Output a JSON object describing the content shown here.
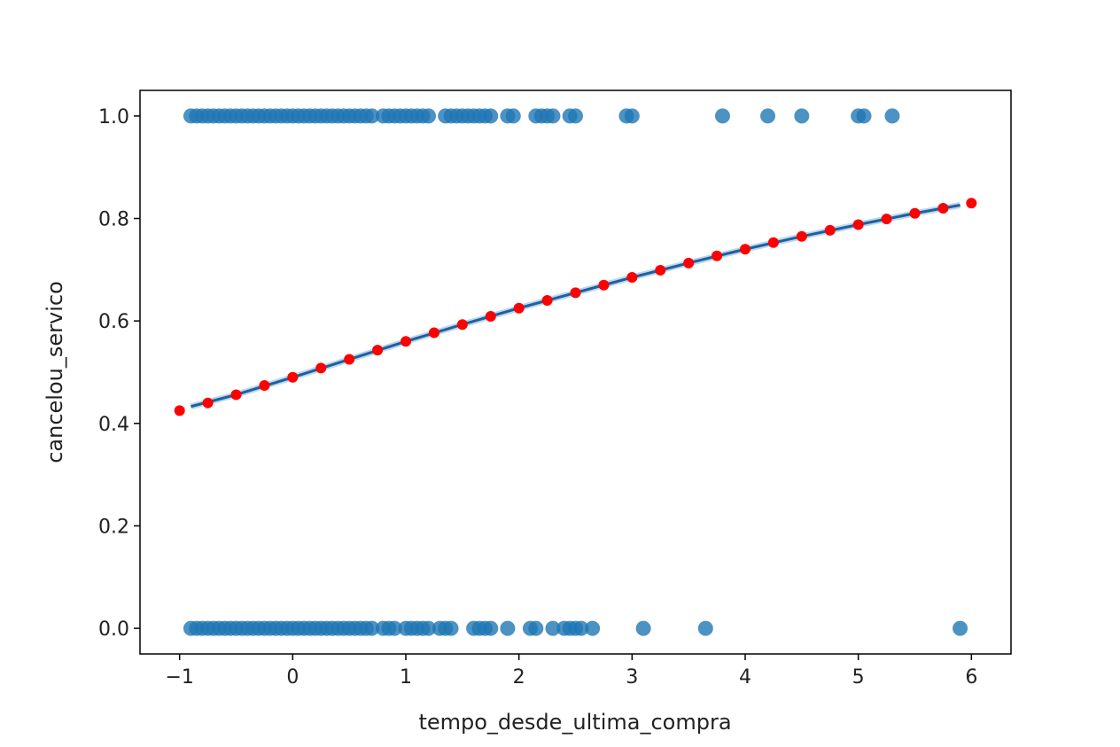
{
  "chart_data": {
    "type": "scatter",
    "title": "",
    "xlabel": "tempo_desde_ultima_compra",
    "ylabel": "cancelou_servico",
    "xlim": [
      -1.35,
      6.35
    ],
    "ylim": [
      -0.05,
      1.05
    ],
    "xticks": [
      -1,
      0,
      1,
      2,
      3,
      4,
      5,
      6
    ],
    "xtick_labels": [
      "−1",
      "0",
      "1",
      "2",
      "3",
      "4",
      "5",
      "6"
    ],
    "yticks": [
      0.0,
      0.2,
      0.4,
      0.6,
      0.8,
      1.0
    ],
    "ytick_labels": [
      "0.0",
      "0.2",
      "0.4",
      "0.6",
      "0.8",
      "1.0"
    ],
    "grid": false,
    "colors": {
      "observed": "#1f77b4",
      "predicted": "#ff0000",
      "fit_line": "#1f5f9e"
    },
    "series": [
      {
        "kind": "scatter",
        "role": "observed",
        "y_value": 1.0,
        "x": [
          -0.9,
          -0.85,
          -0.8,
          -0.75,
          -0.7,
          -0.65,
          -0.6,
          -0.55,
          -0.5,
          -0.45,
          -0.4,
          -0.35,
          -0.3,
          -0.25,
          -0.2,
          -0.15,
          -0.1,
          -0.05,
          0.0,
          0.05,
          0.1,
          0.15,
          0.2,
          0.25,
          0.3,
          0.35,
          0.4,
          0.45,
          0.5,
          0.55,
          0.6,
          0.65,
          0.7,
          0.8,
          0.85,
          0.9,
          0.95,
          1.0,
          1.05,
          1.1,
          1.15,
          1.2,
          1.35,
          1.4,
          1.45,
          1.5,
          1.55,
          1.6,
          1.65,
          1.7,
          1.75,
          1.9,
          1.95,
          2.15,
          2.2,
          2.25,
          2.3,
          2.45,
          2.5,
          2.95,
          3.0,
          3.8,
          4.2,
          4.5,
          5.0,
          5.05,
          5.3
        ]
      },
      {
        "kind": "scatter",
        "role": "observed",
        "y_value": 0.0,
        "x": [
          -0.9,
          -0.85,
          -0.8,
          -0.75,
          -0.7,
          -0.65,
          -0.6,
          -0.55,
          -0.5,
          -0.45,
          -0.4,
          -0.35,
          -0.3,
          -0.25,
          -0.2,
          -0.15,
          -0.1,
          -0.05,
          0.0,
          0.05,
          0.1,
          0.15,
          0.2,
          0.25,
          0.3,
          0.35,
          0.4,
          0.45,
          0.5,
          0.55,
          0.6,
          0.65,
          0.7,
          0.8,
          0.85,
          0.9,
          1.0,
          1.05,
          1.1,
          1.15,
          1.2,
          1.3,
          1.35,
          1.4,
          1.6,
          1.65,
          1.7,
          1.75,
          1.9,
          2.1,
          2.15,
          2.3,
          2.4,
          2.45,
          2.5,
          2.55,
          2.65,
          3.1,
          3.65,
          5.9
        ]
      },
      {
        "kind": "line",
        "role": "fit_line",
        "x": [
          -0.9,
          -0.5,
          0.0,
          0.5,
          1.0,
          1.5,
          2.0,
          2.5,
          3.0,
          3.5,
          4.0,
          4.5,
          5.0,
          5.5,
          5.9
        ],
        "y": [
          0.433,
          0.456,
          0.49,
          0.525,
          0.56,
          0.593,
          0.625,
          0.655,
          0.685,
          0.713,
          0.74,
          0.765,
          0.788,
          0.81,
          0.826
        ]
      },
      {
        "kind": "scatter",
        "role": "predicted",
        "x": [
          -1.0,
          -0.75,
          -0.5,
          -0.25,
          0.0,
          0.25,
          0.5,
          0.75,
          1.0,
          1.25,
          1.5,
          1.75,
          2.0,
          2.25,
          2.5,
          2.75,
          3.0,
          3.25,
          3.5,
          3.75,
          4.0,
          4.25,
          4.5,
          4.75,
          5.0,
          5.25,
          5.5,
          5.75,
          6.0
        ],
        "y": [
          0.425,
          0.44,
          0.456,
          0.474,
          0.49,
          0.508,
          0.525,
          0.543,
          0.56,
          0.577,
          0.593,
          0.609,
          0.625,
          0.64,
          0.655,
          0.67,
          0.685,
          0.699,
          0.713,
          0.727,
          0.74,
          0.753,
          0.765,
          0.777,
          0.788,
          0.799,
          0.81,
          0.82,
          0.83
        ]
      }
    ]
  }
}
